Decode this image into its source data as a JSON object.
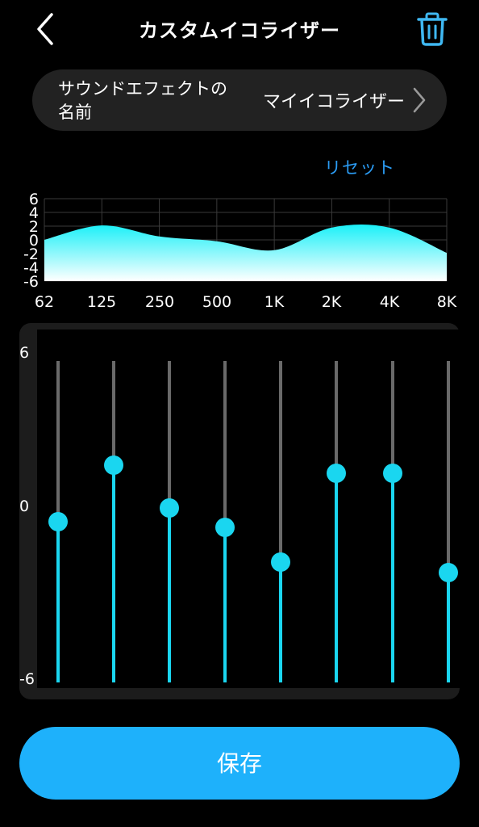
{
  "header": {
    "title": "カスタムイコライザー",
    "back_icon": "chevron-left-icon",
    "trash_icon": "trash-icon"
  },
  "sound_effect": {
    "label": "サウンドエフェクトの名前",
    "value": "マイイコライザー",
    "chevron_icon": "chevron-right-icon"
  },
  "reset_label": "リセット",
  "curve": {
    "y_ticks": [
      "6",
      "4",
      "2",
      "0",
      "-2",
      "-4",
      "-6"
    ],
    "x_ticks": [
      "62",
      "125",
      "250",
      "500",
      "1K",
      "2K",
      "4K",
      "8K"
    ]
  },
  "slider_axis": {
    "max_label": "6",
    "mid_label": "0",
    "min_label": "-6"
  },
  "bands": [
    {
      "freq": "62",
      "gain": 0.0
    },
    {
      "freq": "125",
      "gain": 2.1
    },
    {
      "freq": "250",
      "gain": 0.5
    },
    {
      "freq": "500",
      "gain": -0.2
    },
    {
      "freq": "1K",
      "gain": -1.5
    },
    {
      "freq": "2K",
      "gain": 1.8
    },
    {
      "freq": "4K",
      "gain": 1.8
    },
    {
      "freq": "8K",
      "gain": -1.9
    }
  ],
  "colors": {
    "accent": "#1eb1fb",
    "fill_top": "#1af0f8",
    "fill_bottom": "#ffffff",
    "track_inactive": "#6a6a6a",
    "track_active": "#1ad6f0",
    "link": "#2b9cf4"
  },
  "save_label": "保存"
}
